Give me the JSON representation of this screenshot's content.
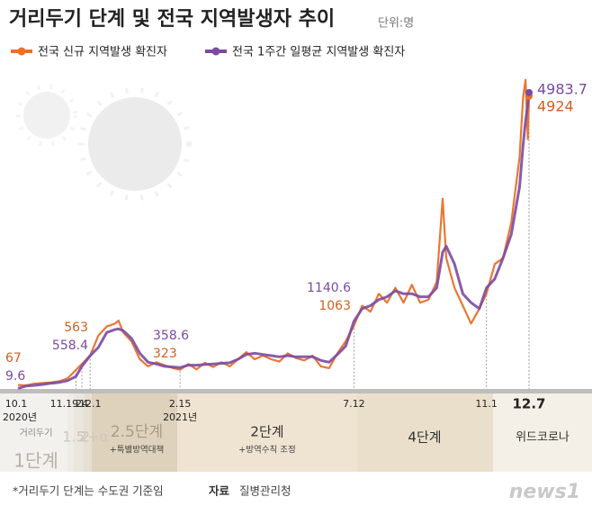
{
  "chart_data": {
    "type": "line",
    "title": "거리두기 단계 및 전국 지역발생자 추이",
    "unit": "단위:명",
    "x": [
      "2020-10-01",
      "2020-10-08",
      "2020-10-15",
      "2020-10-22",
      "2020-10-29",
      "2020-11-05",
      "2020-11-12",
      "2020-11-19",
      "2020-11-24",
      "2020-12-01",
      "2020-12-08",
      "2020-12-15",
      "2020-12-22",
      "2020-12-25",
      "2020-12-29",
      "2021-01-05",
      "2021-01-12",
      "2021-01-19",
      "2021-01-26",
      "2021-02-02",
      "2021-02-09",
      "2021-02-15",
      "2021-02-22",
      "2021-03-01",
      "2021-03-08",
      "2021-03-15",
      "2021-03-22",
      "2021-03-29",
      "2021-04-05",
      "2021-04-12",
      "2021-04-19",
      "2021-04-26",
      "2021-05-03",
      "2021-05-10",
      "2021-05-17",
      "2021-05-24",
      "2021-05-31",
      "2021-06-07",
      "2021-06-14",
      "2021-06-21",
      "2021-06-28",
      "2021-07-05",
      "2021-07-12",
      "2021-07-19",
      "2021-07-26",
      "2021-08-02",
      "2021-08-09",
      "2021-08-16",
      "2021-08-23",
      "2021-08-30",
      "2021-09-06",
      "2021-09-13",
      "2021-09-20",
      "2021-09-25",
      "2021-09-28",
      "2021-10-05",
      "2021-10-12",
      "2021-10-19",
      "2021-10-26",
      "2021-11-01",
      "2021-11-08",
      "2021-11-15",
      "2021-11-22",
      "2021-11-29",
      "2021-12-02",
      "2021-12-04",
      "2021-12-06",
      "2021-12-07"
    ],
    "series": [
      {
        "name": "전국 신규 지역발생 확진자",
        "color": "#e8702a",
        "values": [
          67,
          60,
          90,
          100,
          110,
          130,
          180,
          320,
          420,
          563,
          900,
          1050,
          1100,
          1150,
          950,
          800,
          500,
          380,
          450,
          400,
          350,
          323,
          420,
          330,
          440,
          370,
          450,
          380,
          500,
          620,
          500,
          560,
          500,
          460,
          600,
          520,
          480,
          560,
          380,
          350,
          600,
          800,
          1063,
          1400,
          1300,
          1600,
          1450,
          1700,
          1450,
          1750,
          1450,
          1500,
          1800,
          3200,
          2200,
          1700,
          1400,
          1100,
          1350,
          1600,
          2100,
          2200,
          2800,
          3900,
          4900,
          5200,
          4200,
          4924
        ]
      },
      {
        "name": "전국 1주간 일평균 지역발생 확진자",
        "color": "#7b4aa2",
        "values": [
          9.6,
          50,
          60,
          75,
          95,
          110,
          140,
          210,
          380,
          558.4,
          700,
          950,
          1000,
          1010,
          980,
          850,
          600,
          450,
          420,
          380,
          370,
          358.6,
          400,
          400,
          410,
          420,
          430,
          440,
          500,
          580,
          600,
          580,
          560,
          540,
          560,
          540,
          540,
          540,
          480,
          450,
          580,
          720,
          1140.6,
          1350,
          1400,
          1500,
          1550,
          1650,
          1600,
          1600,
          1550,
          1550,
          1700,
          2300,
          2400,
          2100,
          1600,
          1450,
          1350,
          1700,
          1850,
          2200,
          2600,
          3400,
          4100,
          4500,
          4800,
          4983.7
        ]
      }
    ],
    "xlim": [
      "2020-10-01",
      "2021-12-07"
    ],
    "ylim": [
      0,
      5300
    ],
    "xticks": [
      {
        "value": "2020-10-01",
        "label": "10.1"
      },
      {
        "value": "2020-11-19",
        "label": "11.19"
      },
      {
        "value": "2020-11-24",
        "label": "24"
      },
      {
        "value": "2020-12-01",
        "label": "12.1"
      },
      {
        "value": "2021-02-15",
        "label": "2.15"
      },
      {
        "value": "2021-07-12",
        "label": "7.12"
      },
      {
        "value": "2021-11-01",
        "label": "11.1"
      },
      {
        "value": "2021-12-07",
        "label": "12.7"
      }
    ],
    "year_labels": [
      "2020년",
      "2021년"
    ],
    "data_labels_at": [
      "2020-10-01",
      "2020-12-01",
      "2021-02-15",
      "2021-07-12",
      "2021-12-07"
    ],
    "stages": [
      {
        "label": "1단계",
        "note": "거리두기"
      },
      {
        "label": "1.5"
      },
      {
        "label": "2"
      },
      {
        "label": "2+α"
      },
      {
        "label": "2.5단계",
        "note": "+특별방역대책"
      },
      {
        "label": "2단계",
        "note": "+방역수칙 조정"
      },
      {
        "label": "4단계"
      },
      {
        "label": "위드코로나"
      }
    ],
    "footnote": "*거리두기 단계는 수도권 기준임",
    "source_label": "자료",
    "source": "질병관리청",
    "logo": "news1"
  }
}
